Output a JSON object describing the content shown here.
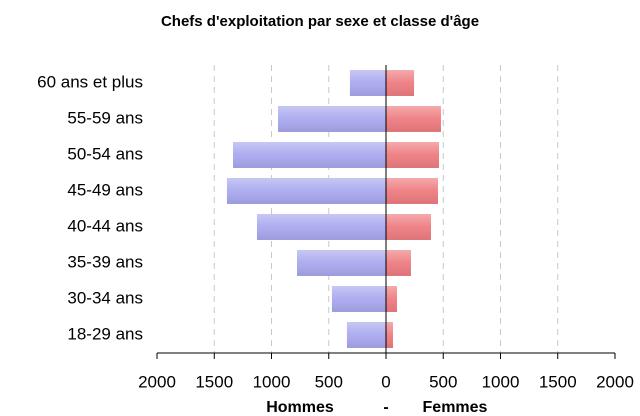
{
  "chart_data": {
    "type": "pyramid",
    "title": "Chefs d'exploitation par sexe et classe d'âge",
    "categories": [
      "18-29 ans",
      "30-34 ans",
      "35-39 ans",
      "40-44 ans",
      "45-49 ans",
      "50-54 ans",
      "55-59 ans",
      "60 ans et plus"
    ],
    "series": [
      {
        "name": "Hommes",
        "color": "#a8a8ee",
        "values": [
          -341,
          -472,
          -777,
          -1127,
          -1389,
          -1336,
          -943,
          -315
        ]
      },
      {
        "name": "Femmes",
        "color": "#ee7c80",
        "values": [
          61,
          96,
          218,
          393,
          454,
          463,
          480,
          245
        ]
      }
    ],
    "x_label_separator": "-",
    "xlim": [
      -2000,
      2000
    ],
    "xticks": [
      {
        "value": -2000,
        "label": "2000"
      },
      {
        "value": -1500,
        "label": "1500"
      },
      {
        "value": -1000,
        "label": "1000"
      },
      {
        "value": -500,
        "label": "500"
      },
      0,
      500,
      1000,
      1500,
      2000
    ],
    "grid": true
  }
}
